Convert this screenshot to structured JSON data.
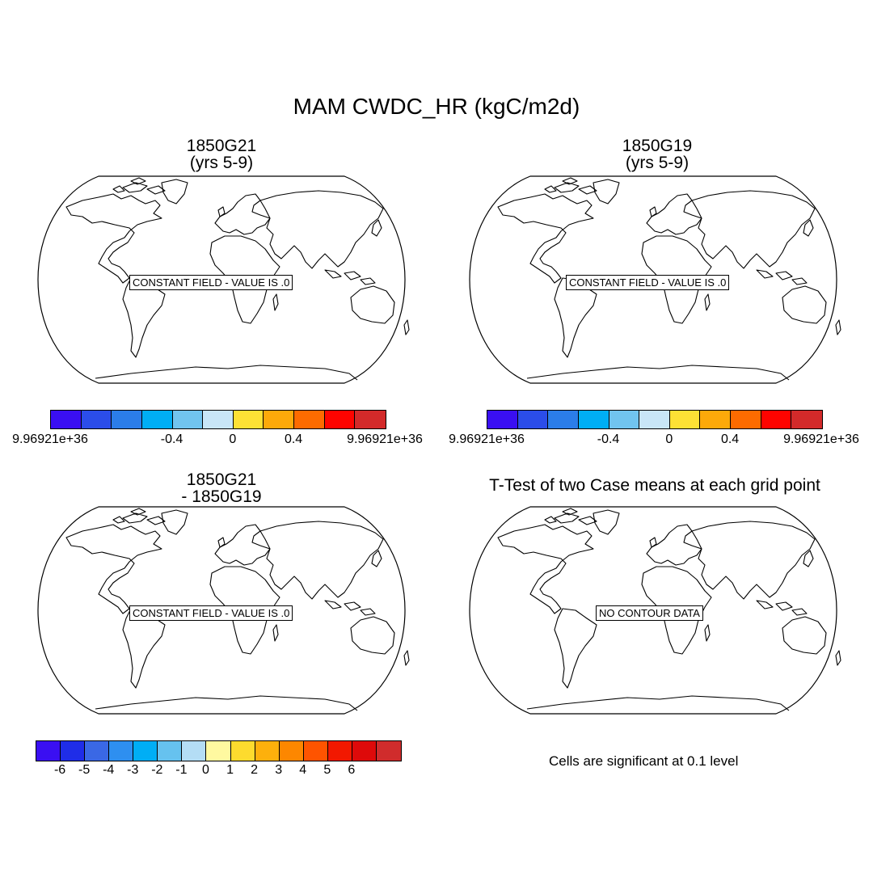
{
  "title": "MAM CWDC_HR (kgC/m2d)",
  "panels": [
    {
      "title_line1": "1850G21",
      "title_line2": "(yrs 5-9)",
      "message": "CONSTANT FIELD - VALUE IS .0"
    },
    {
      "title_line1": "1850G19",
      "title_line2": "(yrs 5-9)",
      "message": "CONSTANT FIELD - VALUE IS .0"
    },
    {
      "title_line1": "1850G21",
      "title_line2": "- 1850G19",
      "message": "CONSTANT FIELD - VALUE IS .0"
    },
    {
      "title_line1": "T-Test of two Case means at each grid point",
      "message": "NO CONTOUR DATA"
    }
  ],
  "colorbar_top": {
    "colors": [
      "#3a0ff2",
      "#2b4de9",
      "#2b7de9",
      "#00aef5",
      "#71c4ef",
      "#c8e6f7",
      "#fde135",
      "#fda90a",
      "#fd6b00",
      "#fe0400",
      "#d32a2a"
    ],
    "labels": [
      "9.96921e+36",
      "-0.4",
      "0",
      "0.4",
      "9.96921e+36"
    ]
  },
  "colorbar_bottom": {
    "colors": [
      "#3a0ff2",
      "#1f2de8",
      "#3a68e5",
      "#2e8ff0",
      "#00aef5",
      "#66c2ef",
      "#b4ddf5",
      "#fff9a0",
      "#fddb2e",
      "#fdb00c",
      "#fd8700",
      "#fe5400",
      "#f21800",
      "#de0a0a",
      "#d02c2c"
    ],
    "labels": [
      "-6",
      "-5",
      "-4",
      "-3",
      "-2",
      "-1",
      "0",
      "1",
      "2",
      "3",
      "4",
      "5",
      "6"
    ]
  },
  "significance_note": "Cells are significant at 0.1 level"
}
